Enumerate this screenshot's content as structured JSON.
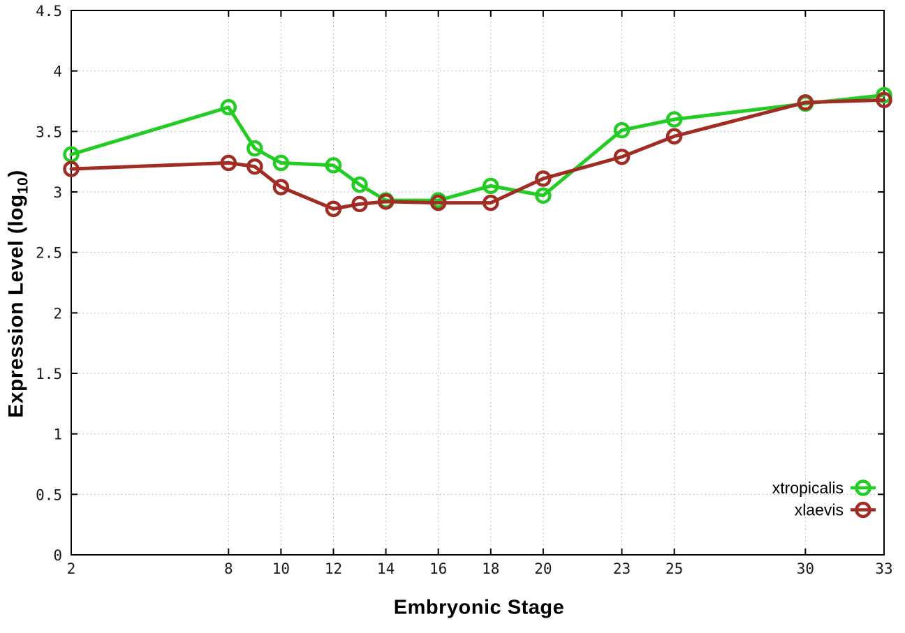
{
  "chart_data": {
    "type": "line",
    "title": "",
    "xlabel": "Embryonic Stage",
    "ylabel": "Expression Level (log10)",
    "ylabel_parts": {
      "pre": "Expression Level (log",
      "sub": "10",
      "post": ")"
    },
    "xlim": [
      2,
      33
    ],
    "ylim": [
      0,
      4.5
    ],
    "grid": true,
    "legend_position": "bottom-right",
    "x_tick_labels": [
      "2",
      "8",
      "10",
      "12",
      "14",
      "16",
      "18",
      "20",
      "23",
      "25",
      "30",
      "33"
    ],
    "x_tick_values": [
      2,
      8,
      10,
      12,
      14,
      16,
      18,
      20,
      23,
      25,
      30,
      33
    ],
    "y_tick_labels": [
      "0",
      "0.5",
      "1",
      "1.5",
      "2",
      "2.5",
      "3",
      "3.5",
      "4",
      "4.5"
    ],
    "y_tick_values": [
      0,
      0.5,
      1,
      1.5,
      2,
      2.5,
      3,
      3.5,
      4,
      4.5
    ],
    "x": [
      2,
      8,
      9,
      10,
      12,
      13,
      14,
      16,
      18,
      20,
      23,
      25,
      30,
      33
    ],
    "series": [
      {
        "name": "xtropicalis",
        "color": "#22cc22",
        "values": [
          3.31,
          3.7,
          3.36,
          3.24,
          3.22,
          3.06,
          2.93,
          2.93,
          3.05,
          2.97,
          3.51,
          3.6,
          3.73,
          3.8
        ]
      },
      {
        "name": "xlaevis",
        "color": "#a02c24",
        "values": [
          3.19,
          3.24,
          3.21,
          3.04,
          2.86,
          2.9,
          2.92,
          2.91,
          2.91,
          3.11,
          3.29,
          3.46,
          3.74,
          3.76
        ]
      }
    ],
    "colors": {
      "border": "#000000",
      "grid": "#a8a8a8",
      "tick_text": "#1a1a1a"
    }
  }
}
